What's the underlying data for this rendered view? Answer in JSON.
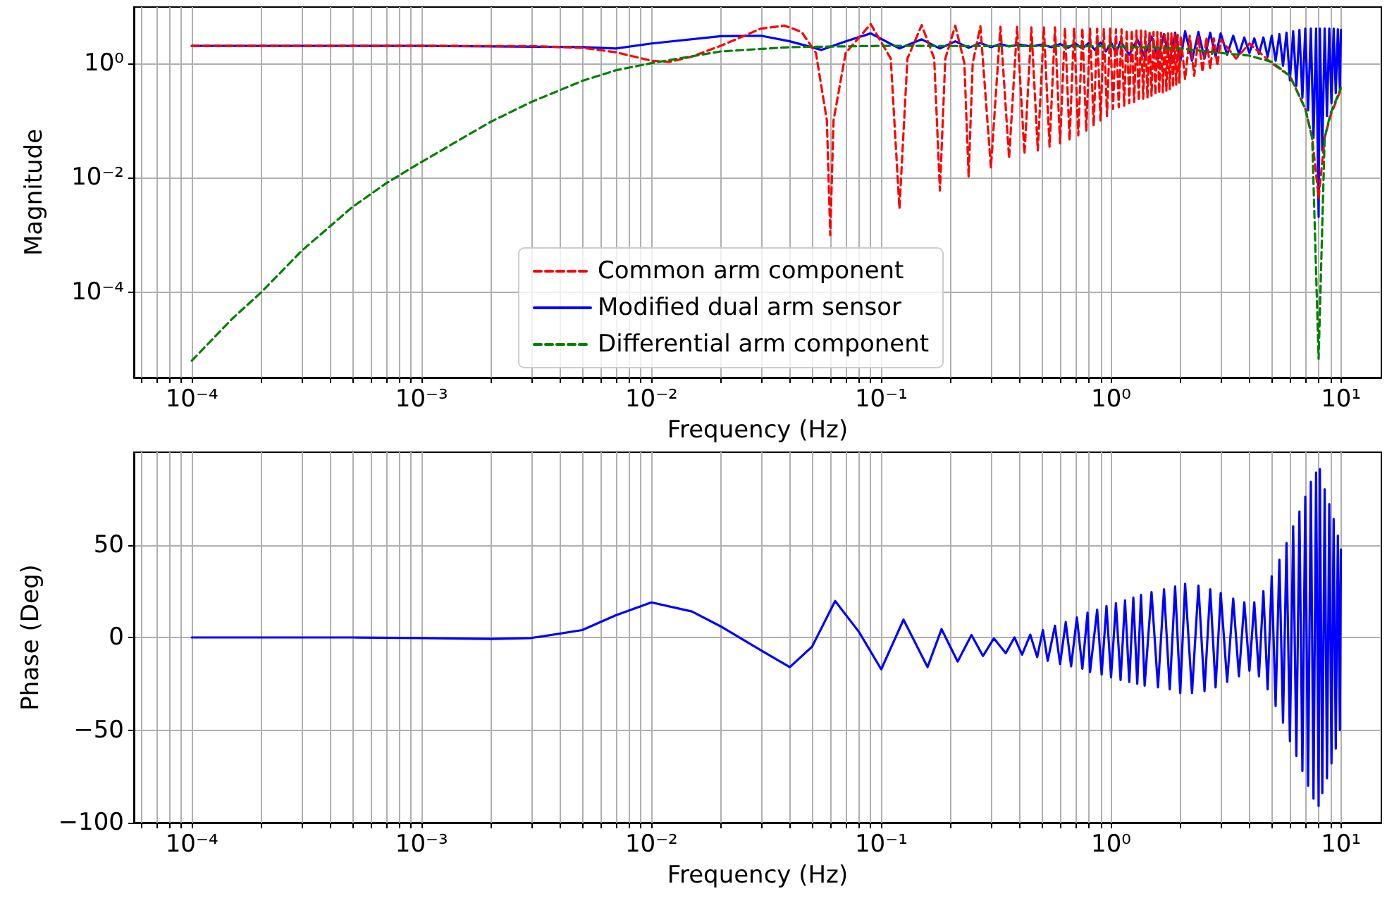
{
  "chart_data": [
    {
      "type": "line",
      "ylabel": "Magnitude",
      "xlabel": "Frequency (Hz)",
      "log": "xy",
      "grid": true,
      "legend": "bottom",
      "marker": "none",
      "xlim": [
        5.6e-05,
        15
      ],
      "ylim": [
        3.3e-06,
        9.5
      ],
      "xticks": [
        {
          "value": 6e-05,
          "label": null
        },
        {
          "value": 7e-05,
          "label": null
        },
        {
          "value": 8e-05,
          "label": null
        },
        {
          "value": 9e-05,
          "label": null
        },
        {
          "value": 0.0001,
          "label": "10⁻⁴"
        },
        {
          "value": 0.0002,
          "label": null
        },
        {
          "value": 0.0003,
          "label": null
        },
        {
          "value": 0.0004,
          "label": null
        },
        {
          "value": 0.0005,
          "label": null
        },
        {
          "value": 0.0006,
          "label": null
        },
        {
          "value": 0.0007,
          "label": null
        },
        {
          "value": 0.0008,
          "label": null
        },
        {
          "value": 0.0009,
          "label": null
        },
        {
          "value": 0.001,
          "label": "10⁻³"
        },
        {
          "value": 0.002,
          "label": null
        },
        {
          "value": 0.003,
          "label": null
        },
        {
          "value": 0.004,
          "label": null
        },
        {
          "value": 0.005,
          "label": null
        },
        {
          "value": 0.006,
          "label": null
        },
        {
          "value": 0.007,
          "label": null
        },
        {
          "value": 0.008,
          "label": null
        },
        {
          "value": 0.009,
          "label": null
        },
        {
          "value": 0.01,
          "label": "10⁻²"
        },
        {
          "value": 0.02,
          "label": null
        },
        {
          "value": 0.03,
          "label": null
        },
        {
          "value": 0.04,
          "label": null
        },
        {
          "value": 0.05,
          "label": null
        },
        {
          "value": 0.06,
          "label": null
        },
        {
          "value": 0.07,
          "label": null
        },
        {
          "value": 0.08,
          "label": null
        },
        {
          "value": 0.09,
          "label": null
        },
        {
          "value": 0.1,
          "label": "10⁻¹"
        },
        {
          "value": 0.2,
          "label": null
        },
        {
          "value": 0.3,
          "label": null
        },
        {
          "value": 0.4,
          "label": null
        },
        {
          "value": 0.5,
          "label": null
        },
        {
          "value": 0.6,
          "label": null
        },
        {
          "value": 0.7,
          "label": null
        },
        {
          "value": 0.8,
          "label": null
        },
        {
          "value": 0.9,
          "label": null
        },
        {
          "value": 1,
          "label": "10⁰"
        },
        {
          "value": 2,
          "label": null
        },
        {
          "value": 3,
          "label": null
        },
        {
          "value": 4,
          "label": null
        },
        {
          "value": 5,
          "label": null
        },
        {
          "value": 6,
          "label": null
        },
        {
          "value": 7,
          "label": null
        },
        {
          "value": 8,
          "label": null
        },
        {
          "value": 9,
          "label": null
        },
        {
          "value": 10,
          "label": "10¹"
        }
      ],
      "yticks": [
        {
          "value": 0.0001,
          "label": "10⁻⁴"
        },
        {
          "value": 0.01,
          "label": "10⁻²"
        },
        {
          "value": 1,
          "label": "10⁰"
        }
      ],
      "series": [
        {
          "name": "Common arm component",
          "color": "#ff0000",
          "line_style": "dashed",
          "x": [
            0.0001,
            0.001,
            0.003,
            0.005,
            0.007,
            0.01,
            0.012,
            0.015,
            0.02,
            0.03,
            0.038,
            0.045,
            0.052,
            0.058,
            0.06,
            0.062,
            0.07,
            0.09,
            0.11,
            0.12,
            0.13,
            0.15,
            0.17,
            0.18,
            0.19,
            0.21,
            0.23,
            0.24,
            0.25,
            0.27,
            0.3,
            0.33,
            0.36,
            0.39,
            0.42,
            0.45,
            0.48,
            0.51,
            0.54,
            0.57,
            0.6,
            0.63,
            0.66,
            0.69,
            0.72,
            0.75,
            0.78,
            0.81,
            0.84,
            0.87,
            0.9,
            0.93,
            0.96,
            0.99,
            1.02,
            1.05,
            1.08,
            1.11,
            1.14,
            1.17,
            1.2,
            1.23,
            1.26,
            1.29,
            1.32,
            1.35,
            1.38,
            1.41,
            1.44,
            1.47,
            1.5,
            1.53,
            1.56,
            1.59,
            1.62,
            1.65,
            1.68,
            1.71,
            1.74,
            1.77,
            1.8,
            1.83,
            1.86,
            1.89,
            1.92,
            1.95,
            1.98,
            2.01,
            2.1,
            2.2,
            2.3,
            2.4,
            2.5,
            2.6,
            2.7,
            2.8,
            2.9,
            3.0,
            3.5,
            4,
            5,
            6,
            7,
            7.5,
            8,
            8.5,
            9,
            10
          ],
          "values": [
            2.0,
            2.0,
            1.98,
            1.85,
            1.55,
            1.1,
            1.05,
            1.3,
            2.0,
            4.0,
            4.5,
            3.5,
            1.5,
            0.1,
            0.001,
            0.1,
            1.5,
            4.8,
            1.2,
            0.0029,
            1.2,
            4.6,
            1.2,
            0.006,
            1.2,
            4.5,
            1,
            0.0105,
            1,
            4.4,
            0.015,
            4.3,
            0.022,
            4.3,
            0.026,
            4.2,
            0.03,
            4.2,
            0.035,
            4.2,
            0.04,
            4.1,
            0.045,
            4.1,
            0.055,
            4.1,
            0.065,
            4.0,
            0.08,
            4.0,
            0.1,
            4.0,
            0.12,
            4.0,
            0.16,
            3.9,
            0.17,
            3.9,
            0.18,
            3.8,
            0.2,
            3.8,
            0.21,
            3.7,
            0.22,
            3.7,
            0.24,
            3.6,
            0.25,
            3.6,
            0.27,
            3.5,
            0.28,
            3.5,
            0.3,
            3.4,
            0.31,
            3.4,
            0.33,
            3.3,
            0.35,
            3.3,
            0.38,
            3.2,
            0.42,
            3.1,
            0.46,
            3.0,
            0.52,
            3.0,
            0.6,
            2.9,
            0.7,
            2.8,
            0.8,
            2.7,
            0.9,
            2.6,
            1.2,
            2.2,
            1.0,
            0.6,
            0.16,
            0.05,
            0.0045,
            0.05,
            0.12,
            0.35
          ]
        },
        {
          "name": "Modified dual arm sensor",
          "color": "#0000ff",
          "line_style": "solid",
          "x": [
            0.0001,
            0.001,
            0.005,
            0.007,
            0.01,
            0.02,
            0.03,
            0.04,
            0.055,
            0.07,
            0.09,
            0.12,
            0.15,
            0.18,
            0.21,
            0.24,
            0.27,
            0.3,
            0.33,
            0.36,
            0.4,
            0.45,
            0.5,
            0.55,
            0.6,
            0.65,
            0.7,
            0.75,
            0.8,
            0.85,
            0.9,
            0.95,
            1.0,
            1.05,
            1.1,
            1.2,
            1.3,
            1.4,
            1.5,
            1.6,
            1.7,
            1.8,
            1.9,
            2.0,
            2.1,
            2.25,
            2.4,
            2.55,
            2.7,
            2.85,
            3.0,
            3.2,
            3.4,
            3.6,
            3.8,
            4.0,
            4.2,
            4.4,
            4.6,
            4.8,
            5.0,
            5.2,
            5.4,
            5.6,
            5.8,
            6.0,
            6.2,
            6.4,
            6.6,
            6.8,
            7.0,
            7.2,
            7.4,
            7.6,
            7.8,
            8.0,
            8.1,
            8.3,
            8.5,
            8.7,
            8.9,
            9.1,
            9.3,
            9.5,
            9.7,
            9.9,
            10
          ],
          "values": [
            2,
            2,
            1.9,
            1.8,
            2.2,
            2.95,
            3.0,
            2.4,
            1.7,
            2.4,
            3.3,
            1.8,
            2.6,
            1.8,
            2.4,
            1.85,
            2.25,
            1.9,
            2.15,
            1.95,
            2.1,
            1.95,
            2.1,
            1.9,
            2.15,
            1.85,
            2.2,
            1.8,
            2.25,
            1.7,
            2.3,
            1.6,
            2.3,
            1.5,
            2.4,
            1.4,
            2.6,
            1.3,
            2.9,
            1.2,
            3.2,
            1.1,
            3.4,
            1.05,
            3.6,
            1.1,
            3.5,
            1.2,
            3.4,
            1.3,
            3.3,
            1.4,
            3.0,
            1.45,
            2.8,
            1.5,
            2.7,
            1.45,
            2.8,
            1.3,
            3.0,
            1.1,
            3.2,
            0.9,
            3.4,
            0.5,
            3.6,
            0.4,
            3.8,
            0.25,
            4.0,
            0.15,
            4.0,
            0.05,
            4.0,
            0.0021,
            4.0,
            0.03,
            4.0,
            0.12,
            4.0,
            0.2,
            4.0,
            0.3,
            3.9,
            0.35,
            3.8
          ]
        },
        {
          "name": "Differential arm component",
          "color": "#008000",
          "line_style": "dashed",
          "x": [
            0.0001,
            0.00015,
            0.0002,
            0.0003,
            0.0005,
            0.0007,
            0.001,
            0.002,
            0.003,
            0.005,
            0.007,
            0.01,
            0.02,
            0.04,
            0.1,
            1,
            2,
            3,
            4,
            5,
            6,
            7,
            7.5,
            8,
            8.5,
            9,
            10
          ],
          "values": [
            6.5e-06,
            3.5e-05,
            0.0001,
            0.00053,
            0.0031,
            0.008,
            0.019,
            0.095,
            0.21,
            0.49,
            0.75,
            1.0,
            1.6,
            1.9,
            2.0,
            1.97,
            1.8,
            1.5,
            1.35,
            1.05,
            0.6,
            0.16,
            0.05,
            7e-06,
            0.05,
            0.13,
            0.37
          ]
        }
      ]
    },
    {
      "type": "line",
      "ylabel": "Phase (Deg)",
      "xlabel": "Frequency (Hz)",
      "log": "x",
      "grid": true,
      "marker": "none",
      "xlim": [
        5.6e-05,
        15
      ],
      "ylim": [
        -100,
        100
      ],
      "xticks": [
        {
          "value": 6e-05,
          "label": null
        },
        {
          "value": 7e-05,
          "label": null
        },
        {
          "value": 8e-05,
          "label": null
        },
        {
          "value": 9e-05,
          "label": null
        },
        {
          "value": 0.0001,
          "label": "10⁻⁴"
        },
        {
          "value": 0.0002,
          "label": null
        },
        {
          "value": 0.0003,
          "label": null
        },
        {
          "value": 0.0004,
          "label": null
        },
        {
          "value": 0.0005,
          "label": null
        },
        {
          "value": 0.0006,
          "label": null
        },
        {
          "value": 0.0007,
          "label": null
        },
        {
          "value": 0.0008,
          "label": null
        },
        {
          "value": 0.0009,
          "label": null
        },
        {
          "value": 0.001,
          "label": "10⁻³"
        },
        {
          "value": 0.002,
          "label": null
        },
        {
          "value": 0.003,
          "label": null
        },
        {
          "value": 0.004,
          "label": null
        },
        {
          "value": 0.005,
          "label": null
        },
        {
          "value": 0.006,
          "label": null
        },
        {
          "value": 0.007,
          "label": null
        },
        {
          "value": 0.008,
          "label": null
        },
        {
          "value": 0.009,
          "label": null
        },
        {
          "value": 0.01,
          "label": "10⁻²"
        },
        {
          "value": 0.02,
          "label": null
        },
        {
          "value": 0.03,
          "label": null
        },
        {
          "value": 0.04,
          "label": null
        },
        {
          "value": 0.05,
          "label": null
        },
        {
          "value": 0.06,
          "label": null
        },
        {
          "value": 0.07,
          "label": null
        },
        {
          "value": 0.08,
          "label": null
        },
        {
          "value": 0.09,
          "label": null
        },
        {
          "value": 0.1,
          "label": "10⁻¹"
        },
        {
          "value": 0.2,
          "label": null
        },
        {
          "value": 0.3,
          "label": null
        },
        {
          "value": 0.4,
          "label": null
        },
        {
          "value": 0.5,
          "label": null
        },
        {
          "value": 0.6,
          "label": null
        },
        {
          "value": 0.7,
          "label": null
        },
        {
          "value": 0.8,
          "label": null
        },
        {
          "value": 0.9,
          "label": null
        },
        {
          "value": 1,
          "label": "10⁰"
        },
        {
          "value": 2,
          "label": null
        },
        {
          "value": 3,
          "label": null
        },
        {
          "value": 4,
          "label": null
        },
        {
          "value": 5,
          "label": null
        },
        {
          "value": 6,
          "label": null
        },
        {
          "value": 7,
          "label": null
        },
        {
          "value": 8,
          "label": null
        },
        {
          "value": 9,
          "label": null
        },
        {
          "value": 10,
          "label": "10¹"
        }
      ],
      "yticks": [
        {
          "value": -100,
          "label": "−100"
        },
        {
          "value": -50,
          "label": "−50"
        },
        0,
        50
      ],
      "series": [
        {
          "color": "#0000ff",
          "line_style": "solid",
          "x": [
            0.0001,
            0.0005,
            0.001,
            0.002,
            0.003,
            0.005,
            0.007,
            0.01,
            0.015,
            0.02,
            0.03,
            0.04,
            0.05,
            0.063,
            0.08,
            0.1,
            0.125,
            0.159,
            0.183,
            0.215,
            0.247,
            0.277,
            0.309,
            0.348,
            0.38,
            0.41,
            0.445,
            0.477,
            0.505,
            0.53,
            0.57,
            0.6,
            0.635,
            0.67,
            0.71,
            0.75,
            0.79,
            0.81,
            0.87,
            0.91,
            0.955,
            1.0,
            1.05,
            1.1,
            1.15,
            1.2,
            1.25,
            1.3,
            1.35,
            1.4,
            1.5,
            1.6,
            1.7,
            1.8,
            1.9,
            2.0,
            2.1,
            2.25,
            2.4,
            2.55,
            2.7,
            2.85,
            3.0,
            3.2,
            3.4,
            3.6,
            3.8,
            4.0,
            4.2,
            4.4,
            4.6,
            4.8,
            5.0,
            5.2,
            5.4,
            5.6,
            5.8,
            6.0,
            6.2,
            6.4,
            6.6,
            6.8,
            7.0,
            7.2,
            7.4,
            7.6,
            7.8,
            8.0,
            8.1,
            8.3,
            8.5,
            8.7,
            8.9,
            9.1,
            9.3,
            9.5,
            9.7,
            9.9,
            10
          ],
          "values": [
            0,
            0,
            -0.3,
            -0.8,
            -0.3,
            4,
            12,
            18.9,
            14,
            6,
            -7,
            -16,
            -5,
            19.7,
            3,
            -17.2,
            9.6,
            -16,
            4.5,
            -13,
            1.3,
            -10,
            -0.5,
            -8.5,
            0,
            -9.3,
            1.5,
            -10.6,
            4,
            -12.6,
            6.3,
            -14.4,
            8.3,
            -15.6,
            10.8,
            -16.9,
            13.4,
            -18.7,
            15,
            -20,
            17,
            -21.5,
            18.5,
            -23,
            20,
            -24,
            21.5,
            -25,
            23,
            -26,
            24.5,
            -27,
            26,
            -28,
            27.5,
            -30,
            29,
            -30,
            28,
            -29,
            26,
            -27,
            24,
            -24,
            21,
            -21,
            19,
            -18,
            19,
            -21,
            25,
            -28,
            33,
            -37,
            42,
            -46,
            51,
            -56,
            60,
            -64,
            68,
            -72,
            76,
            -80,
            84,
            -87,
            89,
            -91,
            90.9,
            -84,
            80,
            -76,
            72,
            -68,
            64,
            -60,
            55,
            -50,
            47.5
          ]
        }
      ]
    }
  ]
}
